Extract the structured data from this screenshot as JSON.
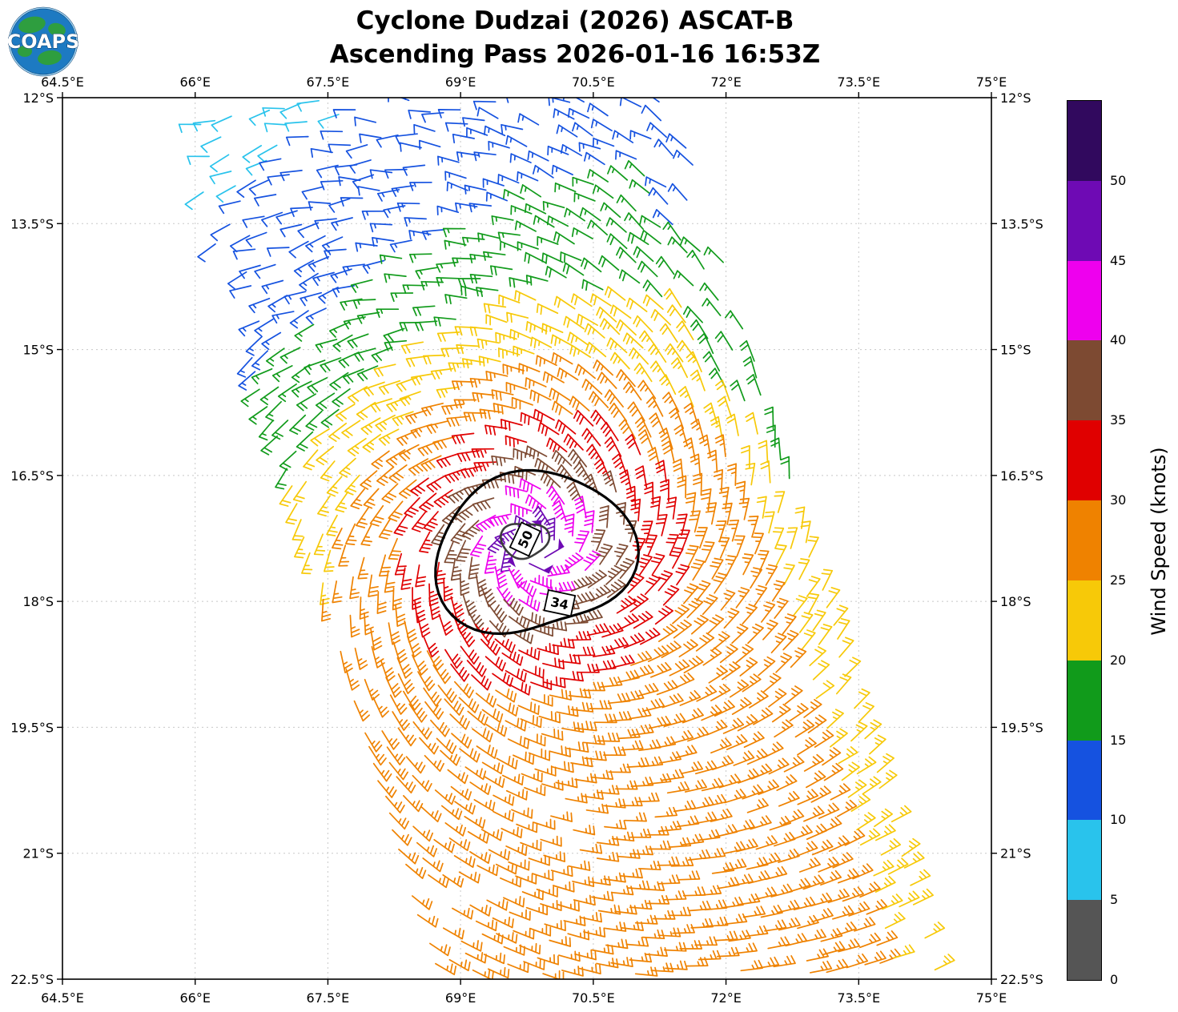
{
  "header": {
    "title_line1": "Cyclone Dudzai (2026) ASCAT-B",
    "title_line2": "Ascending Pass 2026-01-16 16:53Z"
  },
  "logo": {
    "text": "COAPS"
  },
  "axes": {
    "lon_ticks": [
      {
        "value": 64.5,
        "label": "64.5°E"
      },
      {
        "value": 66.0,
        "label": "66°E"
      },
      {
        "value": 67.5,
        "label": "67.5°E"
      },
      {
        "value": 69.0,
        "label": "69°E"
      },
      {
        "value": 70.5,
        "label": "70.5°E"
      },
      {
        "value": 72.0,
        "label": "72°E"
      },
      {
        "value": 73.5,
        "label": "73.5°E"
      },
      {
        "value": 75.0,
        "label": "75°E"
      }
    ],
    "lat_ticks": [
      {
        "value": -12.0,
        "label": "12°S"
      },
      {
        "value": -13.5,
        "label": "13.5°S"
      },
      {
        "value": -15.0,
        "label": "15°S"
      },
      {
        "value": -16.5,
        "label": "16.5°S"
      },
      {
        "value": -18.0,
        "label": "18°S"
      },
      {
        "value": -19.5,
        "label": "19.5°S"
      },
      {
        "value": -21.0,
        "label": "21°S"
      },
      {
        "value": -22.5,
        "label": "22.5°S"
      }
    ]
  },
  "colorbar": {
    "title": "Wind Speed (knots)",
    "tick_labels": [
      "0",
      "5",
      "10",
      "15",
      "20",
      "25",
      "30",
      "35",
      "40",
      "45",
      "50"
    ],
    "segments_bottom_to_top": [
      "#555555",
      "#29C3EC",
      "#1552E0",
      "#119B1B",
      "#F7C908",
      "#EF8200",
      "#E00000",
      "#7D4A32",
      "#EE00EE",
      "#6E0AB4",
      "#31095E"
    ]
  },
  "chart_data": {
    "type": "wind_barb_map",
    "title": "Cyclone Dudzai (2026) ASCAT-B",
    "subtitle": "Ascending Pass 2026-01-16 16:53Z",
    "lon_range": [
      64.5,
      75
    ],
    "lat_range": [
      -22.5,
      -12
    ],
    "grid": "dotted",
    "legend_position": "right-colorbar",
    "wind_speed_units": "knots",
    "speed_bin_edges_knots": [
      0,
      5,
      10,
      15,
      20,
      25,
      30,
      35,
      40,
      45,
      50,
      55
    ],
    "speed_bin_colors": [
      "#555555",
      "#29C3EC",
      "#1552E0",
      "#119B1B",
      "#F7C908",
      "#EF8200",
      "#E00000",
      "#7D4A32",
      "#EE00EE",
      "#6E0AB4",
      "#31095E"
    ],
    "cyclone_center": {
      "lon": 69.8,
      "lat": -17.35
    },
    "max_wind_knots": 52,
    "hemisphere_rotation": "clockwise (Southern Hemisphere cyclone)",
    "wind_contours_knots": [
      {
        "value": 34,
        "label": "34",
        "center_lon": 69.82,
        "center_lat": -17.42,
        "mean_radius_deg": 1.05,
        "label_lon": 70.12,
        "label_lat": -18.02,
        "label_rotation_deg": 12
      },
      {
        "value": 50,
        "label": "50",
        "center_lon": 69.72,
        "center_lat": -17.27,
        "mean_radius_deg": 0.24,
        "label_lon": 69.73,
        "label_lat": -17.26,
        "label_rotation_deg": -65
      }
    ],
    "swath": {
      "track_top": {
        "lon": 68.6,
        "lat": -12.0
      },
      "track_bottom": {
        "lon": 71.6,
        "lat": -22.5
      },
      "half_width_deg": 2.75,
      "barb_spacing_deg": 0.195
    },
    "ambient_flow_knots": {
      "south_side": 26,
      "north_side": 6
    }
  }
}
